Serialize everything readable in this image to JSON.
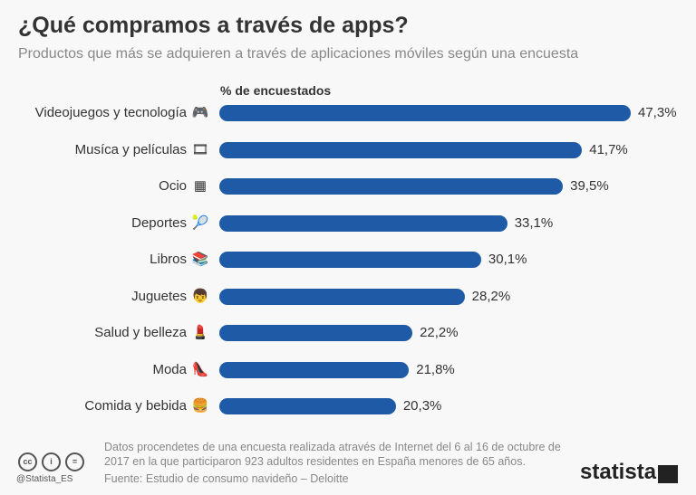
{
  "chart_data": {
    "type": "bar",
    "title": "¿Qué compramos a través de apps?",
    "subtitle": "Productos que más se adquieren a través de aplicaciones móviles según una encuesta",
    "xlabel": "% de encuestados",
    "categories": [
      "Videojuegos y tecnología",
      "Musíca y películas",
      "Ocio",
      "Deportes",
      "Libros",
      "Juguetes",
      "Salud y belleza",
      "Moda",
      "Comida y bebida"
    ],
    "values": [
      47.3,
      41.7,
      39.5,
      33.1,
      30.1,
      28.2,
      22.2,
      21.8,
      20.3
    ],
    "value_labels": [
      "47,3%",
      "41,7%",
      "39,5%",
      "33,1%",
      "30,1%",
      "28,2%",
      "22,2%",
      "21,8%",
      "20,3%"
    ],
    "icons": [
      "gamepad-icon",
      "film-icon",
      "games-icon",
      "tennis-racket-icon",
      "books-icon",
      "boy-icon",
      "cosmetics-icon",
      "high-heel-icon",
      "food-icon"
    ],
    "icon_glyphs": [
      "🎮",
      "🎞",
      "▦",
      "🎾",
      "📚",
      "👦",
      "💄",
      "👠",
      "🍔"
    ],
    "bar_color": "#1f5aa6",
    "xlim": [
      0,
      47.3
    ]
  },
  "footer": {
    "note": "Datos procendetes de una encuesta realizada através de Internet del 6 al 16 de octubre de 2017 en la que participaron 923 adultos residentes en España menores de 65 años.",
    "source": "Fuente: Estudio de consumo navideño – Deloitte",
    "handle": "@Statista_ES",
    "logo": "statista"
  }
}
